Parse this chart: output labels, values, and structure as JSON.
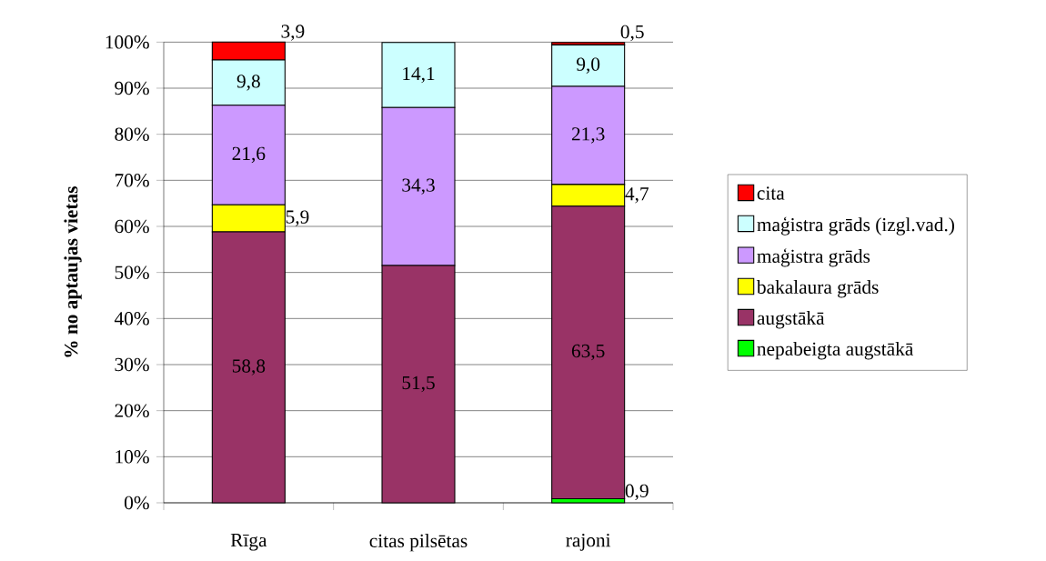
{
  "chart_data": {
    "type": "bar",
    "stacked": true,
    "ylabel": "% no aptaujas vietas",
    "categories": [
      "Rīga",
      "citas pilsētas",
      "rajoni"
    ],
    "series": [
      {
        "name": "nepabeigta augstākā",
        "color": "#00ff00",
        "values": [
          0,
          0,
          0.9
        ],
        "value_labels": [
          null,
          null,
          "0,9"
        ]
      },
      {
        "name": "augstākā",
        "color": "#993366",
        "values": [
          58.8,
          51.5,
          63.5
        ],
        "value_labels": [
          "58,8",
          "51,5",
          "63,5"
        ]
      },
      {
        "name": "bakalaura grāds",
        "color": "#ffff00",
        "values": [
          5.9,
          0,
          4.7
        ],
        "value_labels": [
          "5,9",
          null,
          "4,7"
        ]
      },
      {
        "name": "maģistra grāds",
        "color": "#cc99ff",
        "values": [
          21.6,
          34.3,
          21.3
        ],
        "value_labels": [
          "21,6",
          "34,3",
          "21,3"
        ]
      },
      {
        "name": "maģistra grāds (izgl.vad.)",
        "color": "#ccffff",
        "values": [
          9.8,
          14.1,
          9.0
        ],
        "value_labels": [
          "9,8",
          "14,1",
          "9,0"
        ]
      },
      {
        "name": "cita",
        "color": "#ff0000",
        "values": [
          3.9,
          0,
          0.5
        ],
        "value_labels": [
          "3,9",
          null,
          "0,5"
        ]
      }
    ],
    "ylim": [
      0,
      100
    ],
    "yticks": [
      {
        "value": 0,
        "label": "0%"
      },
      {
        "value": 10,
        "label": "10%"
      },
      {
        "value": 20,
        "label": "20%"
      },
      {
        "value": 30,
        "label": "30%"
      },
      {
        "value": 40,
        "label": "40%"
      },
      {
        "value": 50,
        "label": "50%"
      },
      {
        "value": 60,
        "label": "60%"
      },
      {
        "value": 70,
        "label": "70%"
      },
      {
        "value": 80,
        "label": "80%"
      },
      {
        "value": 90,
        "label": "90%"
      },
      {
        "value": 100,
        "label": "100%"
      }
    ],
    "grid": "y",
    "legend": "right"
  }
}
